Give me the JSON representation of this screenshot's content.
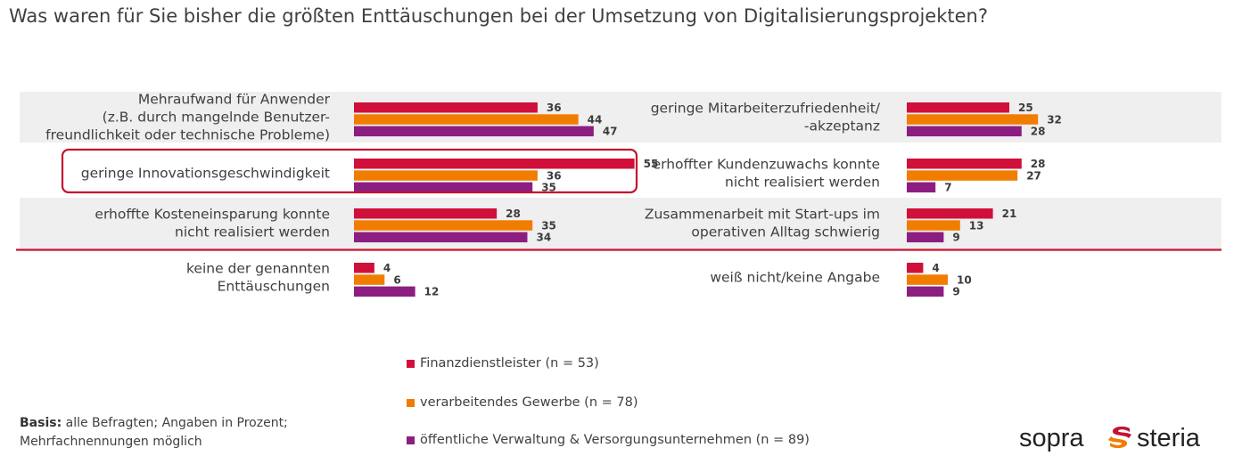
{
  "title": "Was waren für Sie bisher die größten Enttäuschungen bei der Umsetzung von Digitalisierungsprojekten?",
  "colors": {
    "Finanzdienstleister": "#d0103a",
    "verarbeitendes Gewerbe": "#f07d00",
    "öffentliche Verwaltung & Versorgungsunternehmen": "#8c1e82",
    "row_shade": "#efefef",
    "separator": "#c41230",
    "highlight": "#c41230"
  },
  "legend": [
    {
      "label": "Finanzdienstleister (n = 53)",
      "color": "#d0103a"
    },
    {
      "label": "verarbeitendes Gewerbe (n = 78)",
      "color": "#f07d00"
    },
    {
      "label": "öffentliche Verwaltung & Versorgungsunternehmen (n = 89)",
      "color": "#8c1e82"
    }
  ],
  "basis": {
    "bold": "Basis:",
    "line1": " alle Befragten; Angaben in Prozent;",
    "line2": "Mehrfachnennungen möglich"
  },
  "logo": {
    "text_left": "sopra",
    "text_right": "steria",
    "icon": "sopra-steria-s-icon"
  },
  "chart_data": {
    "type": "bar",
    "orientation": "horizontal",
    "unit": "%",
    "series_names": [
      "Finanzdienstleister",
      "verarbeitendes Gewerbe",
      "öffentliche Verwaltung & Versorgungsunternehmen"
    ],
    "panels": [
      {
        "categories": [
          {
            "label": [
              "Mehraufwand für Anwender",
              "(z.B. durch mangelnde Benutzer-",
              "freundlichkeit oder technische Probleme)"
            ],
            "values": [
              36,
              44,
              47
            ],
            "shaded": true
          },
          {
            "label": [
              "geringe Innovationsgeschwindigkeit"
            ],
            "values": [
              55,
              36,
              35
            ],
            "highlighted": true
          },
          {
            "label": [
              "erhoffte Kosteneinsparung konnte",
              "nicht realisiert werden"
            ],
            "values": [
              28,
              35,
              34
            ],
            "shaded": true
          },
          {
            "label": [
              "keine der genannten",
              "Enttäuschungen"
            ],
            "values": [
              4,
              6,
              12
            ]
          }
        ]
      },
      {
        "categories": [
          {
            "label": [
              "geringe Mitarbeiterzufriedenheit/",
              "-akzeptanz"
            ],
            "values": [
              25,
              32,
              28
            ],
            "shaded": true
          },
          {
            "label": [
              "erhoffter Kundenzuwachs konnte",
              "nicht realisiert werden"
            ],
            "values": [
              28,
              27,
              7
            ]
          },
          {
            "label": [
              "Zusammenarbeit mit Start-ups im",
              "operativen Alltag schwierig"
            ],
            "values": [
              21,
              13,
              9
            ],
            "shaded": true
          },
          {
            "label": [
              "weiß nicht/keine Angabe"
            ],
            "values": [
              4,
              10,
              9
            ]
          }
        ]
      }
    ]
  }
}
